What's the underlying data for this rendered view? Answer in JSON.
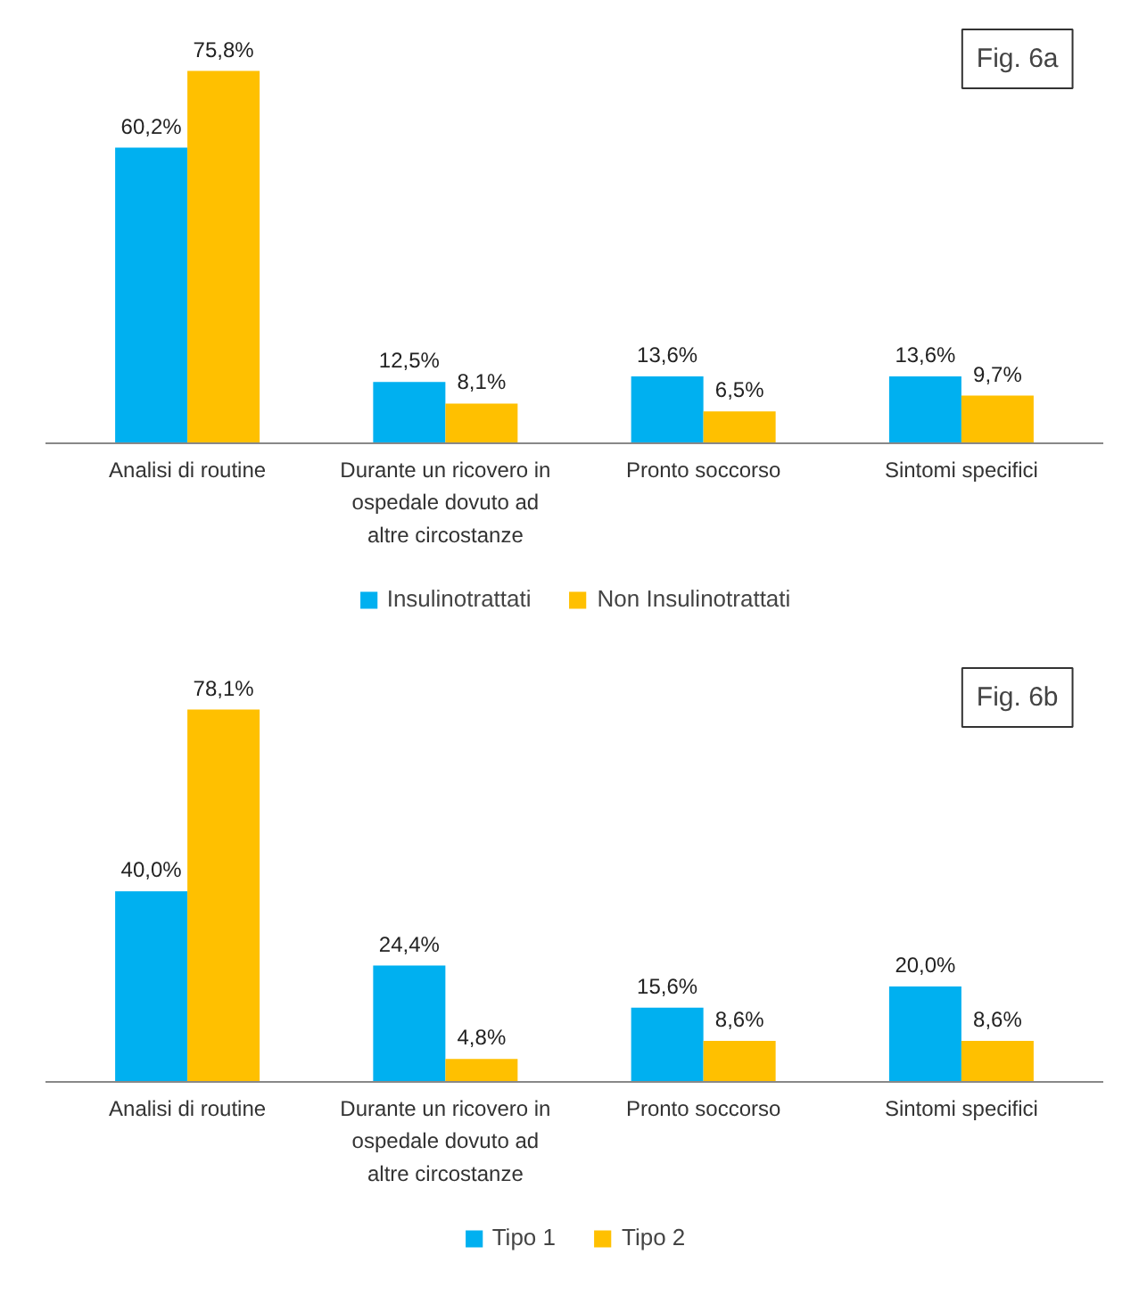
{
  "chart_data": [
    {
      "type": "bar",
      "annotations": [
        "Fig. 6a"
      ],
      "categories": [
        "Analisi di routine",
        "Durante un ricovero in ospedale dovuto ad altre circostanze",
        "Pronto soccorso",
        "Sintomi specifici"
      ],
      "legend": "bottom",
      "series": [
        {
          "name": "Insulinotrattati",
          "color": "#00b0f0",
          "values": [
            60.2,
            12.5,
            13.6,
            13.6
          ],
          "value_labels": [
            "60,2%",
            "12,5%",
            "13,6%",
            "13,6%"
          ]
        },
        {
          "name": "Non Insulinotrattati",
          "color": "#ffc000",
          "values": [
            75.8,
            8.1,
            6.5,
            9.7
          ],
          "value_labels": [
            "75,8%",
            "8,1%",
            "6,5%",
            "9,7%"
          ]
        }
      ]
    },
    {
      "type": "bar",
      "annotations": [
        "Fig. 6b"
      ],
      "categories": [
        "Analisi di routine",
        "Durante un ricovero in ospedale dovuto ad altre circostanze",
        "Pronto soccorso",
        "Sintomi specifici"
      ],
      "legend": "bottom",
      "series": [
        {
          "name": "Tipo 1",
          "color": "#00b0f0",
          "values": [
            40.0,
            24.4,
            15.6,
            20.0
          ],
          "value_labels": [
            "40,0%",
            "24,4%",
            "15,6%",
            "20,0%"
          ]
        },
        {
          "name": "Tipo 2",
          "color": "#ffc000",
          "values": [
            78.1,
            4.8,
            8.6,
            8.6
          ],
          "value_labels": [
            "78,1%",
            "4,8%",
            "8,6%",
            "8,6%"
          ]
        }
      ]
    }
  ]
}
